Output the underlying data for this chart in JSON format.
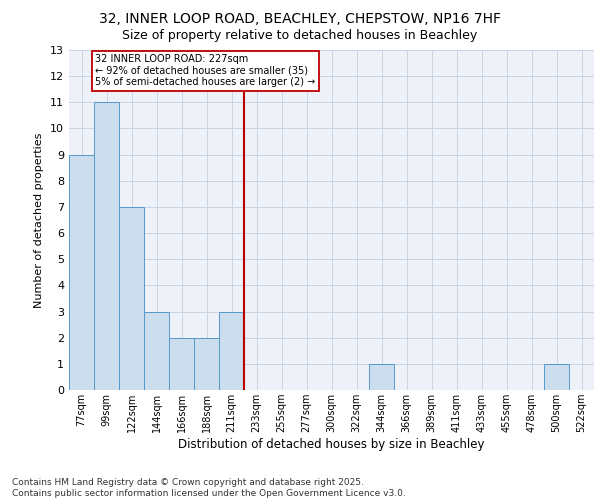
{
  "title_line1": "32, INNER LOOP ROAD, BEACHLEY, CHEPSTOW, NP16 7HF",
  "title_line2": "Size of property relative to detached houses in Beachley",
  "xlabel": "Distribution of detached houses by size in Beachley",
  "ylabel": "Number of detached properties",
  "categories": [
    "77sqm",
    "99sqm",
    "122sqm",
    "144sqm",
    "166sqm",
    "188sqm",
    "211sqm",
    "233sqm",
    "255sqm",
    "277sqm",
    "300sqm",
    "322sqm",
    "344sqm",
    "366sqm",
    "389sqm",
    "411sqm",
    "433sqm",
    "455sqm",
    "478sqm",
    "500sqm",
    "522sqm"
  ],
  "values": [
    9,
    11,
    7,
    3,
    2,
    2,
    3,
    0,
    0,
    0,
    0,
    0,
    1,
    0,
    0,
    0,
    0,
    0,
    0,
    1,
    0
  ],
  "bar_color": "#ccdded",
  "bar_edge_color": "#5599cc",
  "vline_color": "#bb0000",
  "vline_x_index": 7,
  "annotation_text": "32 INNER LOOP ROAD: 227sqm\n← 92% of detached houses are smaller (35)\n5% of semi-detached houses are larger (2) →",
  "annotation_box_color": "#bb0000",
  "ylim": [
    0,
    13
  ],
  "yticks": [
    0,
    1,
    2,
    3,
    4,
    5,
    6,
    7,
    8,
    9,
    10,
    11,
    12,
    13
  ],
  "grid_color": "#c8d4e4",
  "background_color": "#eef2f8",
  "footer_text": "Contains HM Land Registry data © Crown copyright and database right 2025.\nContains public sector information licensed under the Open Government Licence v3.0.",
  "title_fontsize": 10,
  "subtitle_fontsize": 9,
  "tick_fontsize": 7,
  "ylabel_fontsize": 8,
  "xlabel_fontsize": 8.5,
  "footer_fontsize": 6.5,
  "annotation_fontsize": 7
}
